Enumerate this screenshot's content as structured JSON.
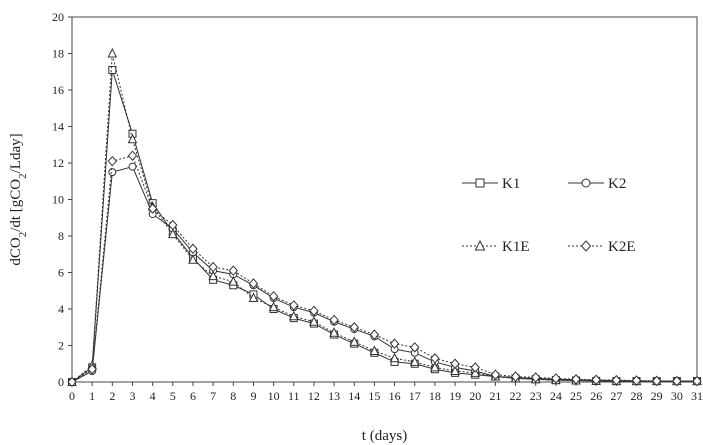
{
  "chart_data": {
    "type": "line",
    "title": "",
    "xlabel": "t (days)",
    "ylabel": {
      "pre": "dCO",
      "sub1": "2",
      "mid": "/dt [gCO",
      "sub2": "2",
      "post": "/Lday]"
    },
    "xlim": [
      0,
      31
    ],
    "ylim": [
      0,
      20
    ],
    "x_ticks": [
      0,
      1,
      2,
      3,
      4,
      5,
      6,
      7,
      8,
      9,
      10,
      11,
      12,
      13,
      14,
      15,
      16,
      17,
      18,
      19,
      20,
      21,
      22,
      23,
      24,
      25,
      26,
      27,
      28,
      29,
      30,
      31
    ],
    "y_ticks": [
      0,
      2,
      4,
      6,
      8,
      10,
      12,
      14,
      16,
      18,
      20
    ],
    "grid": false,
    "legend_position": "right",
    "x": [
      0,
      1,
      2,
      3,
      4,
      5,
      6,
      7,
      8,
      9,
      10,
      11,
      12,
      13,
      14,
      15,
      16,
      17,
      18,
      19,
      20,
      21,
      22,
      23,
      24,
      25,
      26,
      27,
      28,
      29,
      30,
      31
    ],
    "series": [
      {
        "name": "K1",
        "marker": "square",
        "dash": "solid",
        "values": [
          0,
          0.8,
          17.1,
          13.6,
          9.8,
          8.2,
          6.8,
          5.6,
          5.3,
          4.8,
          4.0,
          3.5,
          3.2,
          2.6,
          2.1,
          1.6,
          1.1,
          1.0,
          0.7,
          0.5,
          0.4,
          0.3,
          0.2,
          0.15,
          0.1,
          0.08,
          0.06,
          0.05,
          0.05,
          0.05,
          0.05,
          0.05
        ]
      },
      {
        "name": "K2",
        "marker": "circle",
        "dash": "solid",
        "values": [
          0,
          0.6,
          11.5,
          11.8,
          9.2,
          8.4,
          7.1,
          6.1,
          5.9,
          5.3,
          4.6,
          4.1,
          3.8,
          3.3,
          2.9,
          2.5,
          1.8,
          1.6,
          1.1,
          0.8,
          0.6,
          0.3,
          0.25,
          0.2,
          0.15,
          0.12,
          0.1,
          0.08,
          0.06,
          0.05,
          0.05,
          0.05
        ]
      },
      {
        "name": "K1E",
        "marker": "triangle",
        "dash": "dotted",
        "values": [
          0,
          0.9,
          18.0,
          13.3,
          9.6,
          8.1,
          6.7,
          5.8,
          5.5,
          4.6,
          4.1,
          3.6,
          3.3,
          2.7,
          2.2,
          1.7,
          1.3,
          1.1,
          0.8,
          0.6,
          0.5,
          0.3,
          0.2,
          0.15,
          0.1,
          0.08,
          0.06,
          0.05,
          0.05,
          0.05,
          0.05,
          0.05
        ]
      },
      {
        "name": "K2E",
        "marker": "diamond",
        "dash": "dotted",
        "values": [
          0,
          0.7,
          12.1,
          12.4,
          9.5,
          8.6,
          7.3,
          6.3,
          6.1,
          5.4,
          4.7,
          4.2,
          3.9,
          3.4,
          3.0,
          2.6,
          2.1,
          1.9,
          1.3,
          1.0,
          0.8,
          0.4,
          0.3,
          0.25,
          0.2,
          0.15,
          0.12,
          0.1,
          0.08,
          0.06,
          0.05,
          0.05
        ]
      }
    ]
  }
}
